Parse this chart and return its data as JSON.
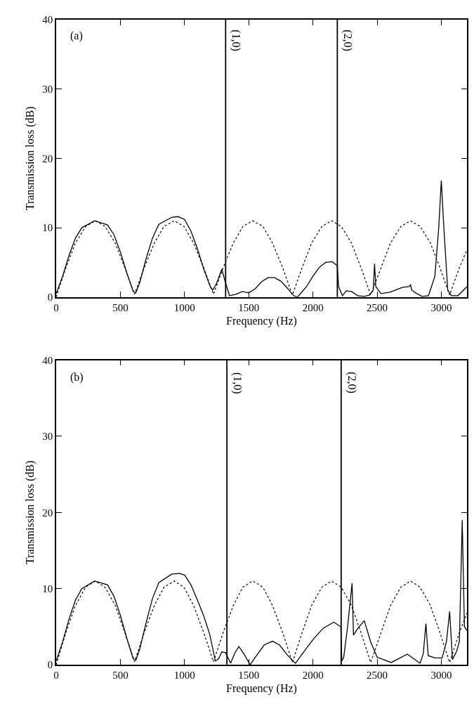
{
  "chart_data": [
    {
      "type": "line",
      "xlabel": "Frequency (Hz)",
      "ylabel": "Transmission loss (dB)",
      "annotations": [
        "(a)",
        {
          "text": "(1,0)",
          "x": 1320,
          "y": 37
        },
        {
          "text": "(2,0)",
          "x": 2190,
          "y": 37
        }
      ],
      "xlim": [
        0,
        3200
      ],
      "xticks": [
        0,
        500,
        1000,
        1500,
        2000,
        2500,
        3000
      ],
      "ylim": [
        0,
        40
      ],
      "yticks": [
        0,
        10,
        20,
        30,
        40
      ],
      "ref_lines": [
        {
          "axis": "x",
          "value": 1320
        },
        {
          "axis": "x",
          "value": 2190
        }
      ],
      "series": [
        {
          "color": "#000000",
          "line_style": "solid",
          "x": [
            0,
            50,
            100,
            150,
            200,
            300,
            400,
            450,
            500,
            550,
            600,
            620,
            650,
            700,
            750,
            800,
            900,
            950,
            1000,
            1050,
            1100,
            1150,
            1200,
            1220,
            1250,
            1290,
            1320,
            1350,
            1400,
            1450,
            1500,
            1550,
            1600,
            1650,
            1700,
            1750,
            1800,
            1850,
            1880,
            1950,
            2000,
            2050,
            2100,
            2150,
            2190,
            2200,
            2230,
            2260,
            2300,
            2350,
            2400,
            2440,
            2470,
            2480,
            2490,
            2530,
            2600,
            2700,
            2750,
            2760,
            2770,
            2800,
            2850,
            2900,
            2950,
            2980,
            3000,
            3020,
            3050,
            3080,
            3130,
            3200
          ],
          "values": [
            0.5,
            3,
            6,
            8.5,
            10,
            11,
            10.4,
            9,
            6.5,
            3.5,
            0.8,
            0.6,
            2,
            5.5,
            8.5,
            10.5,
            11.5,
            11.6,
            11.2,
            9.5,
            7,
            4,
            1.5,
            1,
            2,
            4,
            2,
            0.2,
            0.4,
            0.8,
            0.6,
            1.2,
            2.2,
            2.8,
            2.8,
            2.3,
            1.3,
            0.2,
            0,
            1.5,
            3,
            4.3,
            5,
            5.1,
            4.5,
            1.5,
            0.2,
            0.9,
            0.8,
            0.2,
            0.1,
            0.3,
            1,
            4.8,
            1.5,
            0.5,
            0.7,
            1.4,
            1.5,
            1.8,
            1,
            0.6,
            0.1,
            0.2,
            3,
            10,
            16.8,
            10,
            1,
            0.2,
            0.2,
            1.5
          ]
        },
        {
          "color": "#000000",
          "line_style": "dotted",
          "x": [
            0,
            75,
            150,
            230,
            305,
            380,
            460,
            535,
            610,
            685,
            765,
            840,
            920,
            995,
            1070,
            1150,
            1225,
            1300,
            1380,
            1455,
            1530,
            1610,
            1685,
            1765,
            1840,
            1915,
            1990,
            2070,
            2145,
            2220,
            2300,
            2375,
            2450,
            2530,
            2605,
            2685,
            2760,
            2835,
            2915,
            2990,
            3065,
            3140,
            3200
          ],
          "values": [
            0,
            4.2,
            7.8,
            10.2,
            11,
            10.2,
            7.8,
            4.2,
            0.4,
            4.2,
            7.8,
            10.2,
            11,
            10.2,
            7.8,
            4.2,
            0.4,
            4.2,
            7.8,
            10.2,
            11,
            10.2,
            7.8,
            4.2,
            0.3,
            4.2,
            7.8,
            10.2,
            11,
            10.2,
            7.8,
            4.2,
            0.3,
            4.2,
            7.8,
            10.2,
            11,
            10.2,
            7.8,
            4.2,
            0.3,
            4.2,
            6.8
          ]
        }
      ]
    },
    {
      "type": "line",
      "xlabel": "Frequency (Hz)",
      "ylabel": "Transmission loss (dB)",
      "annotations": [
        "(b)",
        {
          "text": "(1,0)",
          "x": 1330,
          "y": 37
        },
        {
          "text": "(2,0)",
          "x": 2220,
          "y": 37
        }
      ],
      "xlim": [
        0,
        3200
      ],
      "xticks": [
        0,
        500,
        1000,
        1500,
        2000,
        2500,
        3000
      ],
      "ylim": [
        0,
        40
      ],
      "yticks": [
        0,
        10,
        20,
        30,
        40
      ],
      "ref_lines": [
        {
          "axis": "x",
          "value": 1330
        },
        {
          "axis": "x",
          "value": 2220
        }
      ],
      "series": [
        {
          "color": "#000000",
          "line_style": "solid",
          "x": [
            0,
            50,
            100,
            150,
            200,
            300,
            400,
            450,
            500,
            550,
            600,
            620,
            650,
            700,
            750,
            800,
            900,
            960,
            1000,
            1050,
            1100,
            1150,
            1196,
            1240,
            1266,
            1290,
            1320,
            1359,
            1390,
            1423,
            1460,
            1511,
            1560,
            1620,
            1685,
            1740,
            1800,
            1864,
            1920,
            2000,
            2080,
            2163,
            2217,
            2225,
            2240,
            2270,
            2305,
            2316,
            2350,
            2400,
            2450,
            2500,
            2610,
            2735,
            2835,
            2860,
            2880,
            2898,
            2950,
            3006,
            3040,
            3065,
            3087,
            3120,
            3141,
            3163,
            3180,
            3200
          ],
          "values": [
            0.5,
            3,
            6,
            8.5,
            10,
            11,
            10.5,
            9,
            6.5,
            3.5,
            0.8,
            0.6,
            2,
            5.5,
            8.7,
            10.8,
            11.9,
            12,
            11.8,
            10.5,
            8.5,
            6.4,
            4,
            0.5,
            0.8,
            1.7,
            1.6,
            0.2,
            1.5,
            2.4,
            1.5,
            0,
            1.2,
            2.6,
            3.1,
            2.6,
            1.3,
            0.2,
            1.5,
            3.3,
            4.8,
            5.6,
            5.0,
            0.5,
            1.0,
            5,
            10.7,
            3.9,
            4.8,
            5.8,
            3,
            1.0,
            0.3,
            1.4,
            0.2,
            1.5,
            5.4,
            1.2,
            0.9,
            0.9,
            3,
            7.0,
            0.7,
            1.8,
            3.1,
            19.0,
            5.0,
            4.5
          ]
        },
        {
          "color": "#000000",
          "line_style": "dotted",
          "x": [
            0,
            75,
            150,
            230,
            305,
            380,
            460,
            535,
            610,
            685,
            765,
            840,
            920,
            995,
            1070,
            1150,
            1225,
            1300,
            1380,
            1455,
            1530,
            1610,
            1685,
            1765,
            1840,
            1915,
            1990,
            2070,
            2145,
            2220,
            2300,
            2375,
            2450,
            2530,
            2605,
            2685,
            2760,
            2835,
            2915,
            2990,
            3065,
            3140,
            3200
          ],
          "values": [
            0,
            4.2,
            7.8,
            10.2,
            11,
            10.2,
            7.8,
            4.2,
            0.4,
            4.2,
            7.8,
            10.2,
            11,
            10.2,
            7.8,
            4.2,
            0.4,
            4.2,
            7.8,
            10.2,
            11,
            10.2,
            7.8,
            4.2,
            0.3,
            4.2,
            7.8,
            10.2,
            11,
            10.2,
            7.8,
            4.2,
            0.3,
            4.2,
            7.8,
            10.2,
            11,
            10.2,
            7.8,
            4.2,
            0.3,
            4.2,
            6.8
          ]
        }
      ]
    }
  ]
}
